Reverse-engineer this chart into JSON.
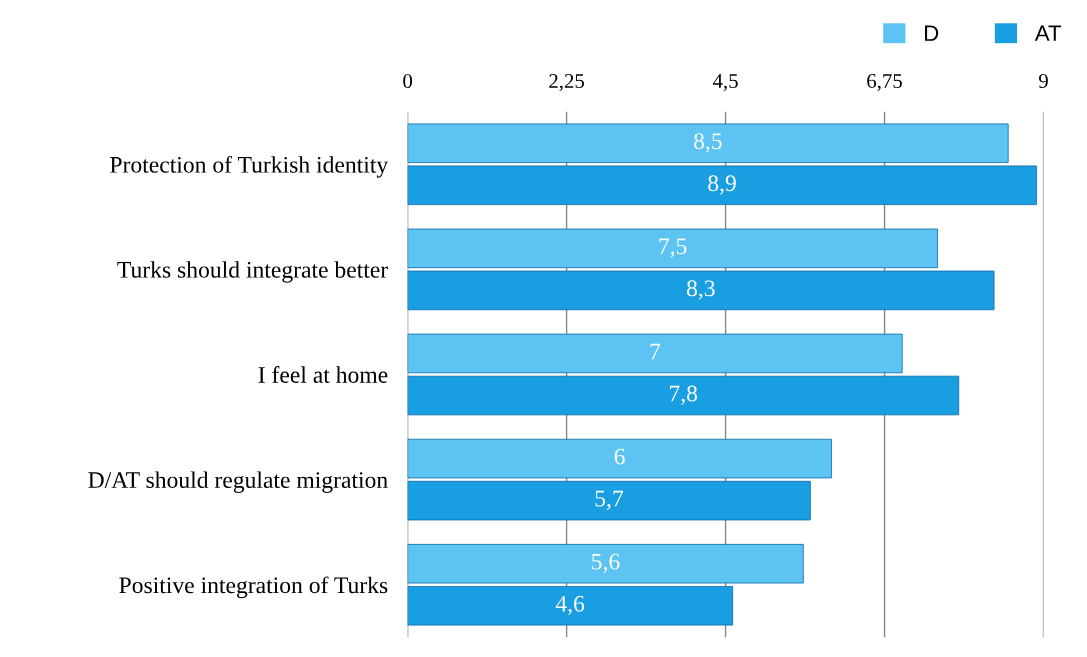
{
  "chart_data": {
    "type": "bar",
    "orientation": "horizontal",
    "categories": [
      "Protection of Turkish identity",
      "Turks should integrate better",
      "I feel at home",
      "D/AT should regulate migration",
      "Positive integration of Turks"
    ],
    "series": [
      {
        "name": "D",
        "color": "#5cc3f2",
        "values": [
          8.5,
          7.5,
          7,
          6,
          5.6
        ],
        "value_labels": [
          "8,5",
          "7,5",
          "7",
          "6",
          "5,6"
        ]
      },
      {
        "name": "AT",
        "color": "#1a9ee2",
        "values": [
          8.9,
          8.3,
          7.8,
          5.7,
          4.6
        ],
        "value_labels": [
          "8,9",
          "8,3",
          "7,8",
          "5,7",
          "4,6"
        ]
      }
    ],
    "xlim": [
      0,
      9
    ],
    "xticks": [
      0,
      {
        "value": 2.25,
        "label": "2,25"
      },
      {
        "value": 4.5,
        "label": "4,5"
      },
      {
        "value": 6.75,
        "label": "6,75"
      },
      9
    ],
    "grid": "x",
    "legend": "top right"
  }
}
